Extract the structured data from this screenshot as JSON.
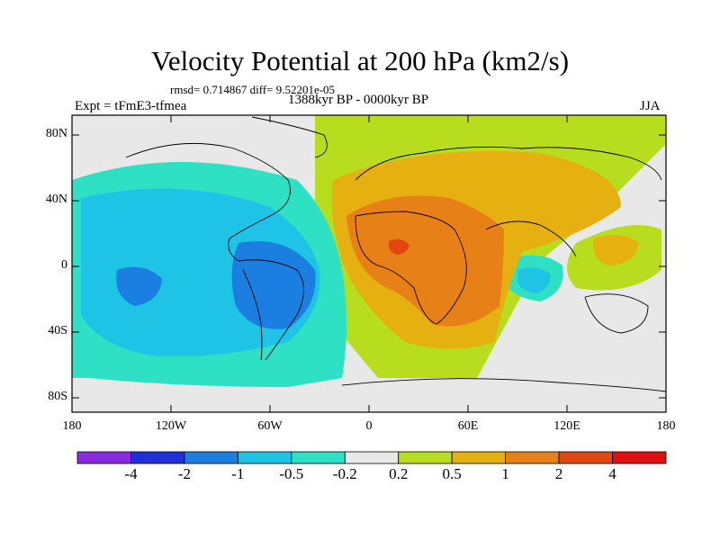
{
  "header": {
    "title": "Velocity Potential at 200 hPa (km2/s)",
    "stats": "rmsd= 0.714867 diff= 9.52201e-05",
    "experiment": "Expt = tFmE3-tfmea",
    "period": "1388kyr BP - 0000kyr BP",
    "season": "JJA"
  },
  "axes": {
    "lat_labels": [
      "80N",
      "40N",
      "0",
      "40S",
      "80S"
    ],
    "lon_labels": [
      "180",
      "120W",
      "60W",
      "0",
      "60E",
      "120E",
      "180"
    ]
  },
  "colorbar": {
    "labels": [
      "-4",
      "-2",
      "-1",
      "-0.5",
      "-0.2",
      "0.2",
      "0.5",
      "1",
      "2",
      "4"
    ],
    "colors": [
      "#8a2be2",
      "#2030d8",
      "#1a7fe0",
      "#1ec3e6",
      "#2ee0c4",
      "#e8e8e8",
      "#b8dc1e",
      "#e6b010",
      "#e88018",
      "#e04810",
      "#e01010"
    ]
  },
  "palette": {
    "neutral": "#e8e8e8",
    "light_negative": "#2ee0c4",
    "mid_negative": "#1ec3e6",
    "strong_negative": "#1a7fe0",
    "light_positive": "#b8dc1e",
    "mid_positive": "#e6b010",
    "strong_positive": "#e88018",
    "max_positive": "#e04810"
  }
}
